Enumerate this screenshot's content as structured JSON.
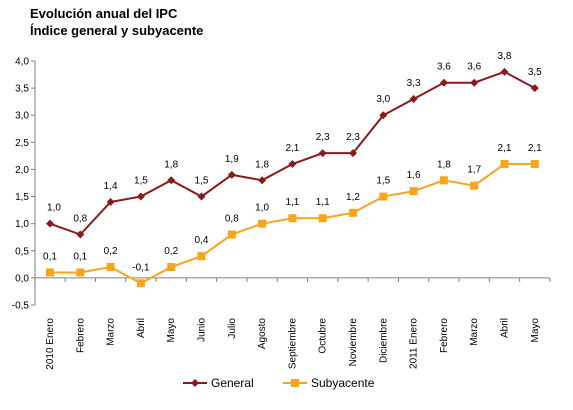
{
  "chart_data": {
    "type": "line",
    "title": "Evolución anual del IPC",
    "subtitle": "Índice general y subyacente",
    "xlabel": "",
    "ylabel": "",
    "ylim": [
      -0.5,
      4.0
    ],
    "yticks": [
      "4,0",
      "3,5",
      "3,0",
      "2,5",
      "2,0",
      "1,5",
      "1,0",
      "0,5",
      "0,0",
      "-0,5"
    ],
    "ytick_values": [
      4.0,
      3.5,
      3.0,
      2.5,
      2.0,
      1.5,
      1.0,
      0.5,
      0.0,
      -0.5
    ],
    "categories": [
      "2010 Enero",
      "Febrero",
      "Marzo",
      "Abril",
      "Mayo",
      "Junio",
      "Julio",
      "Agosto",
      "Septiembre",
      "Octubre",
      "Noviembre",
      "Diciembre",
      "2011 Enero",
      "Febrero",
      "Marzo",
      "Abril",
      "Mayo"
    ],
    "grid": false,
    "legend_position": "bottom",
    "series": [
      {
        "name": "General",
        "color": "#8b1a1a",
        "marker": "diamond",
        "values": [
          1.0,
          0.8,
          1.4,
          1.5,
          1.8,
          1.5,
          1.9,
          1.8,
          2.1,
          2.3,
          2.3,
          3.0,
          3.3,
          3.6,
          3.6,
          3.8,
          3.5
        ],
        "labels": [
          "1,0",
          "0,8",
          "1,4",
          "1,5",
          "1,8",
          "1,5",
          "1,9",
          "1,8",
          "2,1",
          "2,3",
          "2,3",
          "3,0",
          "3,3",
          "3,6",
          "3,6",
          "3,8",
          "3,5"
        ]
      },
      {
        "name": "Subyacente",
        "color": "#f7a51c",
        "marker": "square",
        "values": [
          0.1,
          0.1,
          0.2,
          -0.1,
          0.2,
          0.4,
          0.8,
          1.0,
          1.1,
          1.1,
          1.2,
          1.5,
          1.6,
          1.8,
          1.7,
          2.1,
          2.1
        ],
        "labels": [
          "0,1",
          "0,1",
          "0,2",
          "-0,1",
          "0,2",
          "0,4",
          "0,8",
          "1,0",
          "1,1",
          "1,1",
          "1,2",
          "1,5",
          "1,6",
          "1,8",
          "1,7",
          "2,1",
          "2,1"
        ]
      }
    ]
  }
}
